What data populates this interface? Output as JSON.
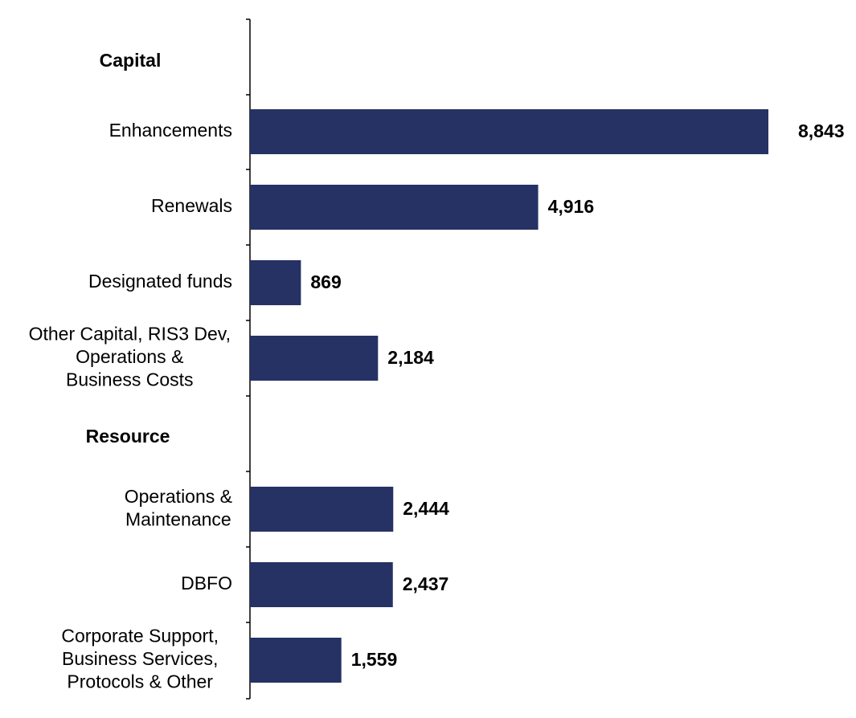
{
  "chart_data": {
    "type": "bar",
    "orientation": "horizontal",
    "groups": [
      {
        "label": "Capital",
        "items": [
          {
            "label": [
              "Enhancements"
            ],
            "value": 8843,
            "value_label": "8,843"
          },
          {
            "label": [
              "Renewals"
            ],
            "value": 4916,
            "value_label": "4,916"
          },
          {
            "label": [
              "Designated funds"
            ],
            "value": 869,
            "value_label": "869"
          },
          {
            "label": [
              "Other Capital, RIS3 Dev,",
              "Operations &",
              "Business Costs"
            ],
            "value": 2184,
            "value_label": "2,184"
          }
        ]
      },
      {
        "label": "Resource",
        "items": [
          {
            "label": [
              "Operations &",
              "Maintenance"
            ],
            "value": 2444,
            "value_label": "2,444"
          },
          {
            "label": [
              "DBFO"
            ],
            "value": 2437,
            "value_label": "2,437"
          },
          {
            "label": [
              "Corporate Support,",
              "Business Services,",
              "Protocols & Other"
            ],
            "value": 1559,
            "value_label": "1,559"
          }
        ]
      }
    ],
    "xlim": [
      0,
      8843
    ],
    "grid": false,
    "legend": "none",
    "bar_color": "#263264",
    "axis_color": "#000000"
  }
}
